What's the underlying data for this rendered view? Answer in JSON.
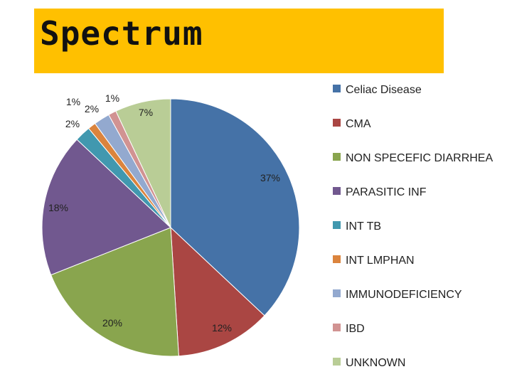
{
  "title": "Spectrum",
  "colors": {
    "title_bar": "#ffc000"
  },
  "chart_data": {
    "type": "pie",
    "legend_position": "right",
    "categories": [
      "Celiac Disease",
      "CMA",
      "NON SPECEFIC DIARRHEA",
      "PARASITIC INF",
      "INT TB",
      "INT LMPHAN",
      "IMMUNODEFICIENCY",
      "IBD",
      "UNKNOWN"
    ],
    "values": [
      37,
      12,
      20,
      18,
      2,
      1,
      2,
      1,
      7
    ],
    "labels": [
      "37%",
      "12%",
      "20%",
      "18%",
      "2%",
      "1%",
      "2%",
      "1%",
      "7%"
    ],
    "colors": [
      "#4572a7",
      "#aa4643",
      "#89a54e",
      "#71588f",
      "#4198af",
      "#db843d",
      "#93a9cf",
      "#d19392",
      "#b9cd96"
    ]
  }
}
